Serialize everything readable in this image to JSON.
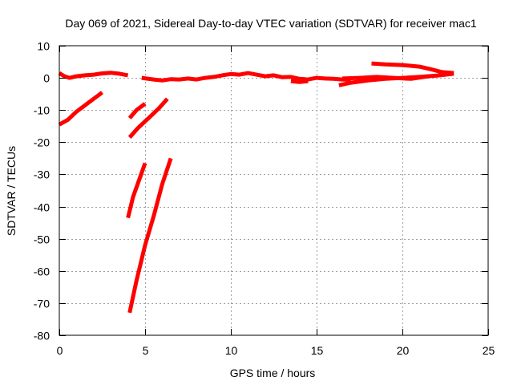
{
  "chart_data": {
    "type": "line",
    "title": "Day 069 of 2021, Sidereal Day-to-day VTEC variation (SDTVAR) for receiver mac1",
    "xlabel": "GPS time / hours",
    "ylabel": "SDTVAR / TECUs",
    "xlim": [
      0,
      25
    ],
    "ylim": [
      -80,
      10
    ],
    "x_ticks": [
      "0",
      "5",
      "10",
      "15",
      "20",
      "25"
    ],
    "x_tick_values": [
      0,
      5,
      10,
      15,
      20,
      25
    ],
    "y_ticks": [
      "10",
      "0",
      "-10",
      "-20",
      "-30",
      "-40",
      "-50",
      "-60",
      "-70",
      "-80"
    ],
    "y_tick_values": [
      10,
      0,
      -10,
      -20,
      -30,
      -40,
      -50,
      -60,
      -70,
      -80
    ],
    "grid": true,
    "legend": "none",
    "series_color": "#ff0000",
    "series": [
      {
        "x": [
          0,
          0.3,
          0.6,
          1.0,
          1.5,
          2.0,
          2.5,
          3.0,
          3.5,
          4.0
        ],
        "y": [
          1.5,
          0.5,
          0.0,
          0.5,
          0.8,
          1.0,
          1.4,
          1.6,
          1.3,
          0.8
        ]
      },
      {
        "x": [
          0,
          0.5,
          1.0,
          1.5,
          2.0,
          2.5
        ],
        "y": [
          -14.5,
          -13.0,
          -10.5,
          -8.5,
          -6.5,
          -4.5
        ]
      },
      {
        "x": [
          4.1,
          4.5,
          5.0
        ],
        "y": [
          -12.5,
          -10.0,
          -8.0
        ]
      },
      {
        "x": [
          4.1,
          4.6,
          5.2,
          5.8,
          6.3
        ],
        "y": [
          -18.5,
          -15.5,
          -12.5,
          -9.5,
          -6.5
        ]
      },
      {
        "x": [
          4.0,
          4.3,
          4.7,
          5.0
        ],
        "y": [
          -43.5,
          -37.0,
          -31.0,
          -26.5
        ]
      },
      {
        "x": [
          4.1,
          4.5,
          5.0,
          5.5,
          6.0,
          6.5
        ],
        "y": [
          -73.0,
          -63.0,
          -52.0,
          -43.0,
          -33.0,
          -25.0
        ]
      },
      {
        "x": [
          4.8,
          5.5,
          6.0,
          6.5,
          7.0,
          7.5,
          8.0,
          8.5,
          9.0,
          9.5,
          10.0,
          10.5,
          11.0,
          11.5,
          12.0,
          12.5,
          13.0,
          13.5,
          14.0,
          14.5,
          15.0,
          15.5,
          16.0,
          16.5,
          17.0
        ],
        "y": [
          0.0,
          -0.5,
          -0.8,
          -0.4,
          -0.5,
          -0.2,
          -0.5,
          0.0,
          0.3,
          0.8,
          1.2,
          1.0,
          1.5,
          1.0,
          0.5,
          0.8,
          0.2,
          0.3,
          -0.3,
          -0.5,
          0.0,
          -0.2,
          -0.3,
          -0.5,
          -0.6
        ]
      },
      {
        "x": [
          13.5,
          14.0,
          14.5
        ],
        "y": [
          -1.0,
          -1.3,
          -1.0
        ]
      },
      {
        "x": [
          16.3,
          17.0,
          18.0,
          19.0,
          20.0,
          21.0,
          22.0,
          22.5,
          23.0
        ],
        "y": [
          -2.3,
          -1.5,
          -0.8,
          -0.3,
          0.0,
          0.3,
          0.7,
          1.0,
          1.3
        ]
      },
      {
        "x": [
          16.5,
          17.5,
          18.5,
          19.5,
          20.5,
          21.5
        ],
        "y": [
          -0.2,
          0.0,
          0.3,
          0.0,
          -0.3,
          0.5
        ]
      },
      {
        "x": [
          18.2,
          19.0,
          20.0,
          21.0,
          21.8,
          22.3,
          23.0
        ],
        "y": [
          4.5,
          4.2,
          4.0,
          3.5,
          2.5,
          1.8,
          1.5
        ]
      }
    ]
  }
}
